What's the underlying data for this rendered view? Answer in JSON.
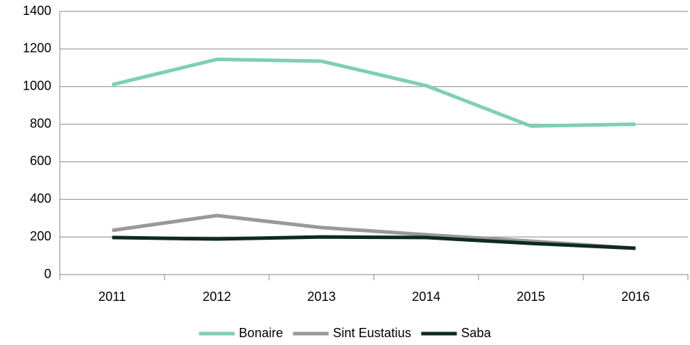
{
  "chart_data": {
    "type": "line",
    "categories": [
      "2011",
      "2012",
      "2013",
      "2014",
      "2015",
      "2016"
    ],
    "series": [
      {
        "name": "Bonaire",
        "color": "#7dcfb6",
        "values": [
          1010,
          1145,
          1135,
          1005,
          790,
          800
        ]
      },
      {
        "name": "Sint Eustatius",
        "color": "#999999",
        "values": [
          235,
          314,
          250,
          212,
          178,
          140
        ]
      },
      {
        "name": "Saba",
        "color": "#0e2a22",
        "values": [
          197,
          189,
          200,
          197,
          166,
          140
        ]
      }
    ],
    "ylim": [
      0,
      1400
    ],
    "yticks": [
      0,
      200,
      400,
      600,
      800,
      1000,
      1200,
      1400
    ],
    "grid": true,
    "legend": "bottom"
  }
}
